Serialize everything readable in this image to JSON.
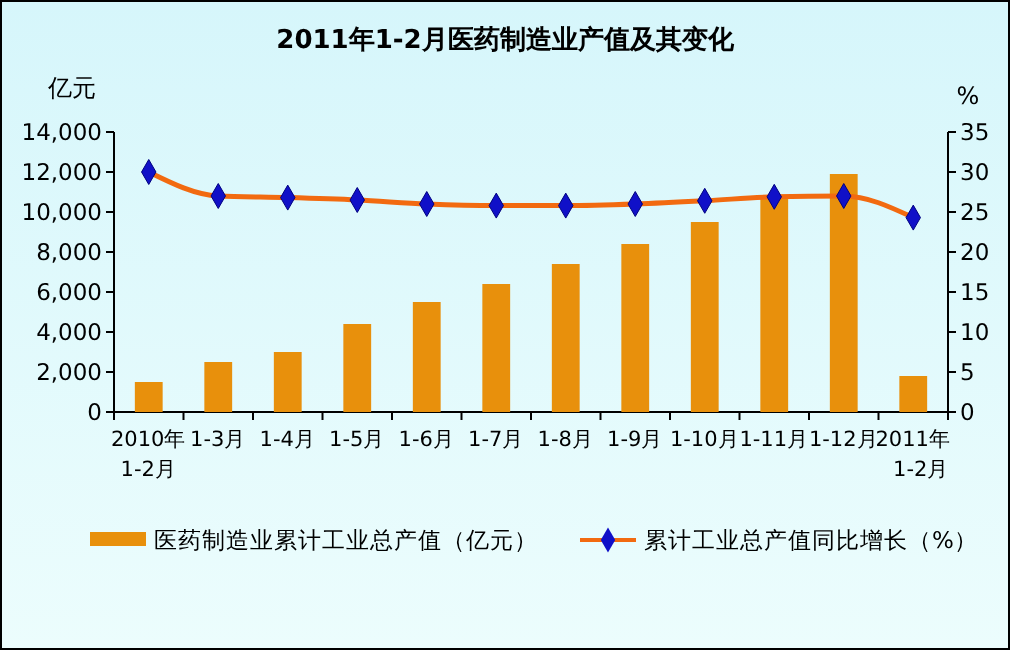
{
  "chart_data": {
    "type": "bar",
    "title": "2011年1-2月医药制造业产值及其变化",
    "ylabel": "亿元",
    "y2label": "%",
    "categories": [
      "2010年\n1-2月",
      "1-3月",
      "1-4月",
      "1-5月",
      "1-6月",
      "1-7月",
      "1-8月",
      "1-9月",
      "1-10月",
      "1-11月",
      "1-12月",
      "2011年\n1-2月"
    ],
    "series": [
      {
        "name": "医药制造业累计工业总产值（亿元）",
        "color": "#e8900c",
        "values": [
          1500,
          2500,
          3000,
          4400,
          5500,
          6400,
          7400,
          8400,
          9500,
          10700,
          11900,
          1800
        ]
      },
      {
        "name": "累计工业总产值同比增长（%）",
        "type": "line",
        "axis": "y2",
        "color": "#f26a10",
        "marker": "diamond",
        "values": [
          30.0,
          27.0,
          26.8,
          26.5,
          26.0,
          25.8,
          25.8,
          26.0,
          26.4,
          26.9,
          27.0,
          24.3
        ]
      }
    ],
    "ylim": [
      0,
      14000
    ],
    "yticks": [
      0,
      {
        "value": 2000,
        "label": "2,000"
      },
      {
        "value": 4000,
        "label": "4,000"
      },
      {
        "value": 6000,
        "label": "6,000"
      },
      {
        "value": 8000,
        "label": "8,000"
      },
      {
        "value": 10000,
        "label": "10,000"
      },
      {
        "value": 12000,
        "label": "12,000"
      },
      {
        "value": 14000,
        "label": "14,000"
      }
    ],
    "y2lim": [
      0,
      35
    ],
    "y2ticks": [
      0,
      5,
      10,
      15,
      20,
      25,
      30,
      35
    ],
    "grid": false,
    "legend": "bottom"
  }
}
